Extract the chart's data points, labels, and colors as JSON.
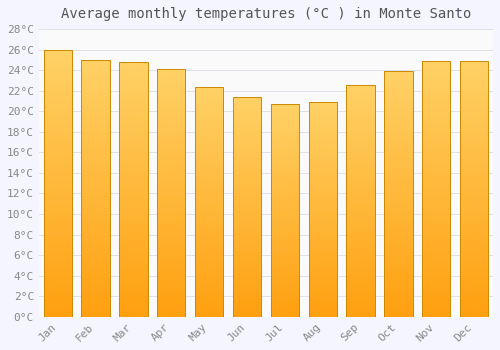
{
  "title": "Average monthly temperatures (°C ) in Monte Santo",
  "months": [
    "Jan",
    "Feb",
    "Mar",
    "Apr",
    "May",
    "Jun",
    "Jul",
    "Aug",
    "Sep",
    "Oct",
    "Nov",
    "Dec"
  ],
  "values": [
    26.0,
    25.0,
    24.8,
    24.1,
    22.4,
    21.4,
    20.7,
    20.9,
    22.6,
    23.9,
    24.9,
    24.9
  ],
  "bar_color_top": "#FFD966",
  "bar_color_bottom": "#FFA010",
  "bar_edge_color": "#CC8800",
  "ylim": [
    0,
    28
  ],
  "ytick_step": 2,
  "background_color": "#F5F5FF",
  "plot_bg_color": "#FAFAFA",
  "grid_color": "#E0E0E8",
  "title_fontsize": 10,
  "tick_fontsize": 8,
  "font_family": "monospace",
  "title_color": "#555555",
  "tick_color": "#888888"
}
